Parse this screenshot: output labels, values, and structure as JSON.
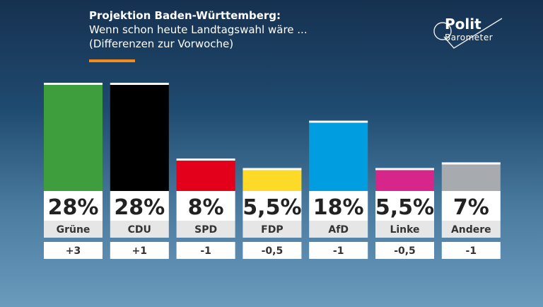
{
  "header": {
    "title": "Projektion Baden-Württemberg:",
    "subtitle": "Wenn schon heute Landtagswahl wäre ...",
    "subtitle2": "(Differenzen zur Vorwoche)"
  },
  "logo": {
    "line1": "Polit",
    "line2": "Barometer"
  },
  "chart_data": {
    "type": "bar",
    "title": "Projektion Baden-Württemberg",
    "categories": [
      "Grüne",
      "CDU",
      "SPD",
      "FDP",
      "AfD",
      "Linke",
      "Andere"
    ],
    "values": [
      28,
      28,
      8,
      5.5,
      18,
      5.5,
      7
    ],
    "value_labels": [
      "28%",
      "28%",
      "8%",
      "5,5%",
      "18%",
      "5,5%",
      "7%"
    ],
    "changes": [
      "+3",
      "+1",
      "-1",
      "-0,5",
      "-1",
      "-0,5",
      "-1"
    ],
    "colors": [
      "#3e9e3e",
      "#000000",
      "#e2001a",
      "#fdd928",
      "#009ee0",
      "#d6268a",
      "#a7abb0"
    ],
    "unit": "%",
    "ylim": [
      0,
      28
    ]
  }
}
